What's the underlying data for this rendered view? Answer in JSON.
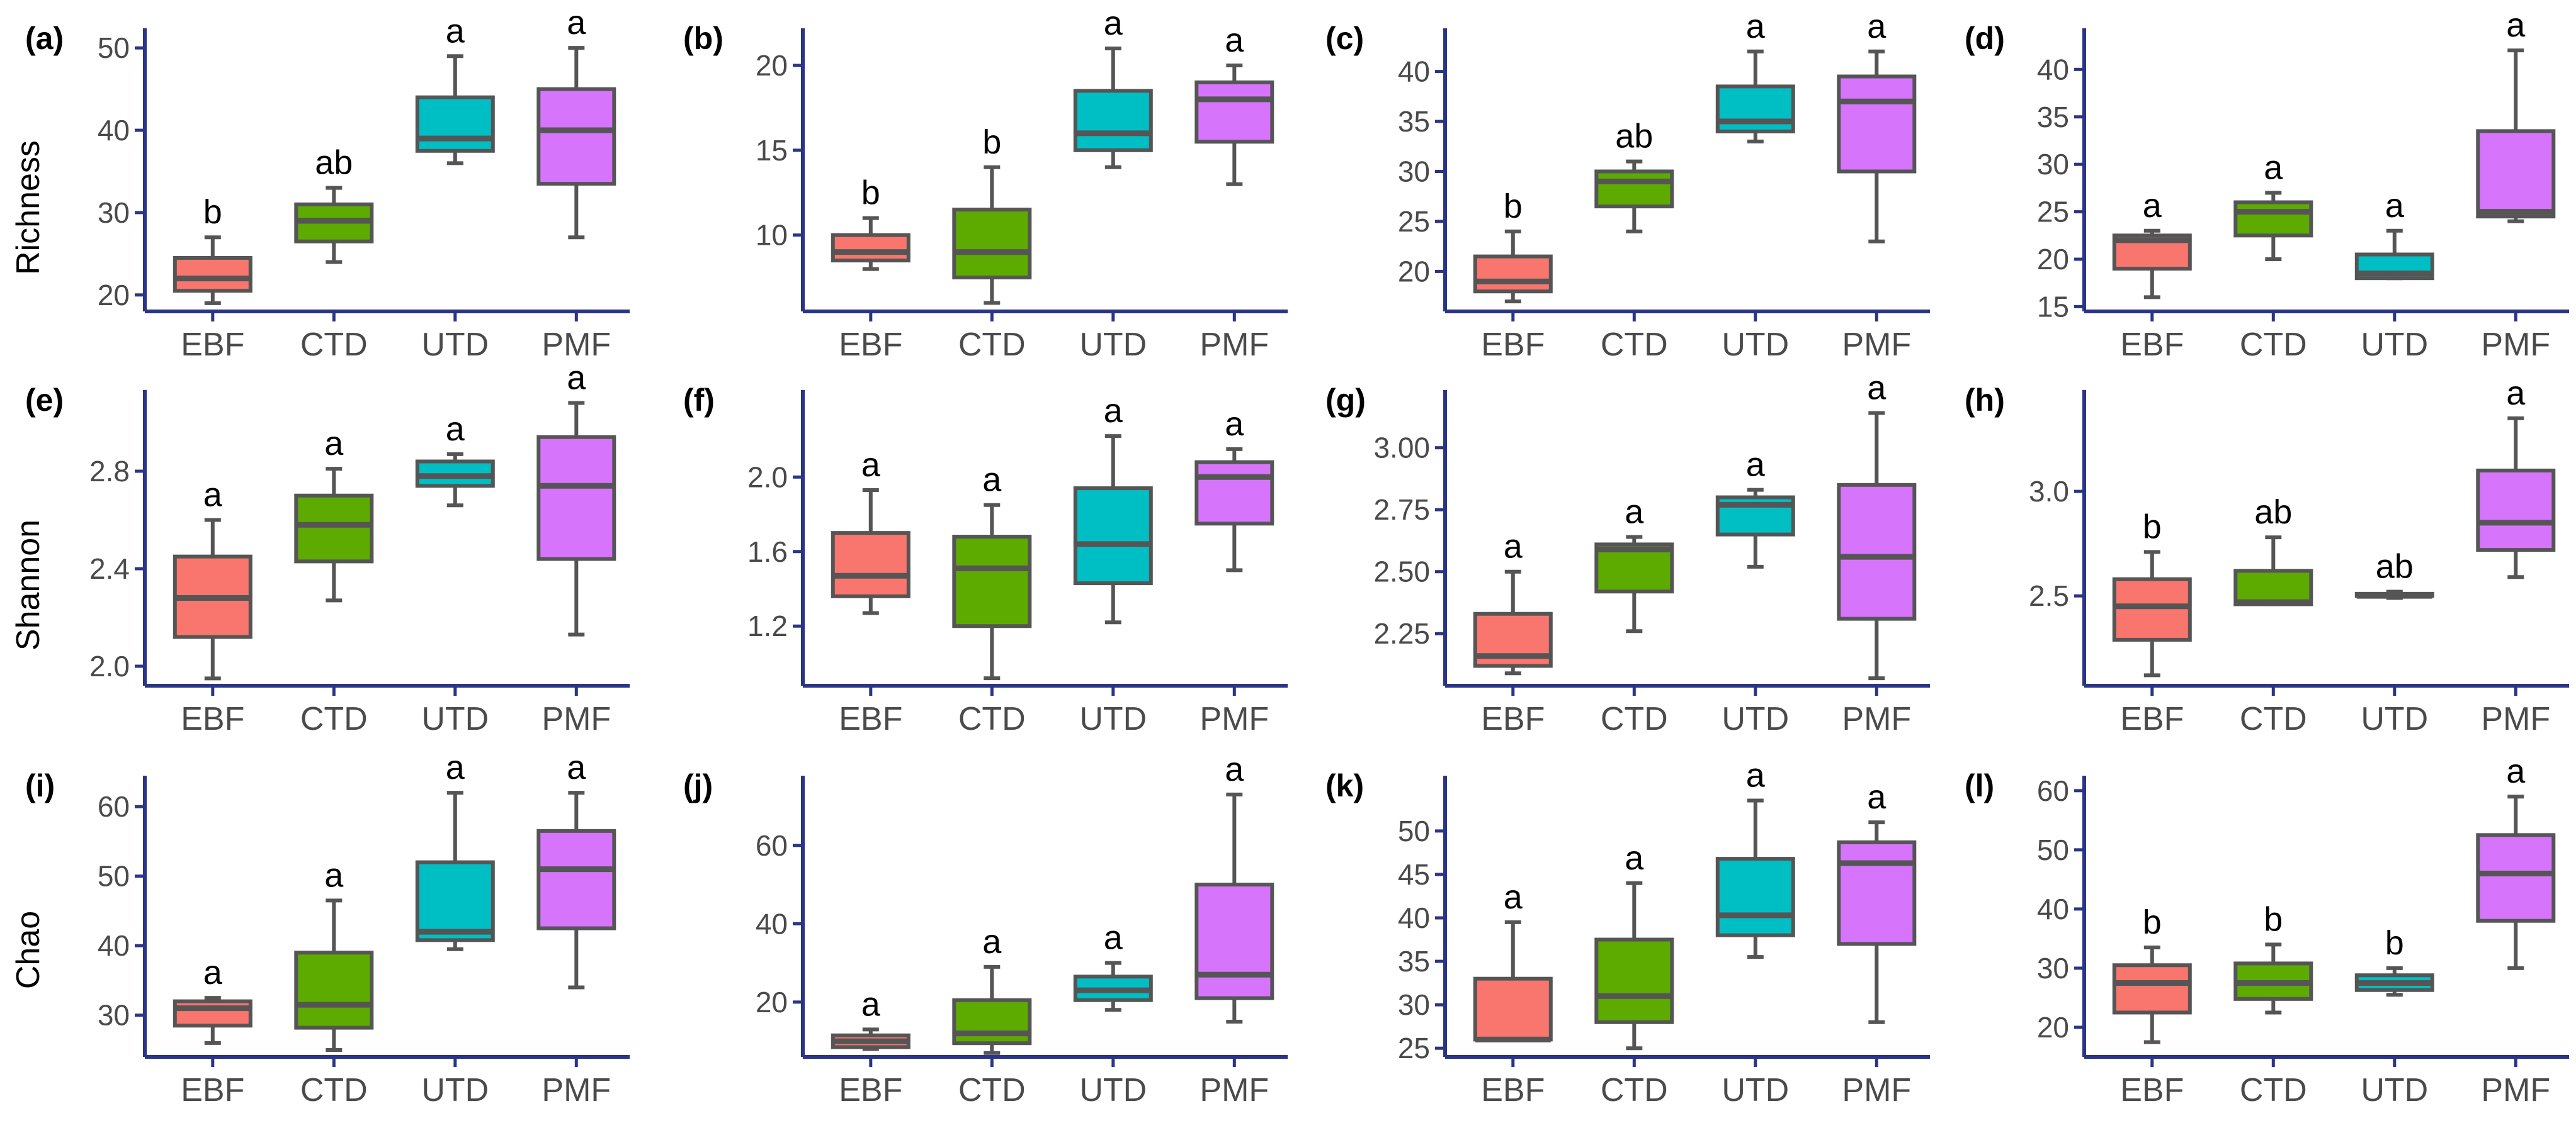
{
  "row_labels": [
    "Richness",
    "Shannon",
    "Chao"
  ],
  "colors": {
    "EBF": "#f8766d",
    "CTD": "#5daa00",
    "UTD": "#00bfc4",
    "PMF": "#d674fc",
    "axis": "#2a3587"
  },
  "chart_data": [
    {
      "type": "boxplot",
      "panel": "(a)",
      "metric": "Richness",
      "categories": [
        "EBF",
        "CTD",
        "UTD",
        "PMF"
      ],
      "ylim": [
        18,
        52
      ],
      "yticks": [
        20,
        30,
        40,
        50
      ],
      "boxes": [
        {
          "cat": "EBF",
          "min": 19,
          "q1": 20.5,
          "median": 22,
          "q3": 24.5,
          "max": 27,
          "letter": "b"
        },
        {
          "cat": "CTD",
          "min": 24,
          "q1": 26.5,
          "median": 29,
          "q3": 31,
          "max": 33,
          "letter": "ab"
        },
        {
          "cat": "UTD",
          "min": 36,
          "q1": 37.5,
          "median": 39,
          "q3": 44,
          "max": 49,
          "letter": "a"
        },
        {
          "cat": "PMF",
          "min": 27,
          "q1": 33.5,
          "median": 40,
          "q3": 45,
          "max": 50,
          "letter": "a"
        }
      ]
    },
    {
      "type": "boxplot",
      "panel": "(b)",
      "metric": "Richness",
      "categories": [
        "EBF",
        "CTD",
        "UTD",
        "PMF"
      ],
      "ylim": [
        5.5,
        22
      ],
      "yticks": [
        10,
        15,
        20
      ],
      "boxes": [
        {
          "cat": "EBF",
          "min": 8,
          "q1": 8.5,
          "median": 9,
          "q3": 10,
          "max": 11,
          "letter": "b"
        },
        {
          "cat": "CTD",
          "min": 6,
          "q1": 7.5,
          "median": 9,
          "q3": 11.5,
          "max": 14,
          "letter": "b"
        },
        {
          "cat": "UTD",
          "min": 14,
          "q1": 15,
          "median": 16,
          "q3": 18.5,
          "max": 21,
          "letter": "a"
        },
        {
          "cat": "PMF",
          "min": 13,
          "q1": 15.5,
          "median": 18,
          "q3": 19,
          "max": 20,
          "letter": "a"
        }
      ]
    },
    {
      "type": "boxplot",
      "panel": "(c)",
      "metric": "Richness",
      "categories": [
        "EBF",
        "CTD",
        "UTD",
        "PMF"
      ],
      "ylim": [
        16,
        44
      ],
      "yticks": [
        20,
        25,
        30,
        35,
        40
      ],
      "boxes": [
        {
          "cat": "EBF",
          "min": 17,
          "q1": 18,
          "median": 19,
          "q3": 21.5,
          "max": 24,
          "letter": "b"
        },
        {
          "cat": "CTD",
          "min": 24,
          "q1": 26.5,
          "median": 29,
          "q3": 30,
          "max": 31,
          "letter": "ab"
        },
        {
          "cat": "UTD",
          "min": 33,
          "q1": 34,
          "median": 35,
          "q3": 38.5,
          "max": 42,
          "letter": "a"
        },
        {
          "cat": "PMF",
          "min": 23,
          "q1": 30,
          "median": 37,
          "q3": 39.5,
          "max": 42,
          "letter": "a"
        }
      ]
    },
    {
      "type": "boxplot",
      "panel": "(d)",
      "metric": "Richness",
      "categories": [
        "EBF",
        "CTD",
        "UTD",
        "PMF"
      ],
      "ylim": [
        14.5,
        44
      ],
      "yticks": [
        15,
        20,
        25,
        30,
        35,
        40
      ],
      "boxes": [
        {
          "cat": "EBF",
          "min": 16,
          "q1": 19,
          "median": 22,
          "q3": 22.5,
          "max": 23,
          "letter": "a"
        },
        {
          "cat": "CTD",
          "min": 20,
          "q1": 22.5,
          "median": 25,
          "q3": 26,
          "max": 27,
          "letter": "a"
        },
        {
          "cat": "UTD",
          "min": 18,
          "q1": 18,
          "median": 18.5,
          "q3": 20.5,
          "max": 23,
          "letter": "a"
        },
        {
          "cat": "PMF",
          "min": 24,
          "q1": 24.5,
          "median": 25,
          "q3": 33.5,
          "max": 42,
          "letter": "a"
        }
      ]
    },
    {
      "type": "boxplot",
      "panel": "(e)",
      "metric": "Shannon",
      "categories": [
        "EBF",
        "CTD",
        "UTD",
        "PMF"
      ],
      "ylim": [
        1.92,
        3.12
      ],
      "yticks": [
        2.0,
        2.4,
        2.8
      ],
      "boxes": [
        {
          "cat": "EBF",
          "min": 1.95,
          "q1": 2.12,
          "median": 2.28,
          "q3": 2.45,
          "max": 2.6,
          "letter": "a"
        },
        {
          "cat": "CTD",
          "min": 2.27,
          "q1": 2.43,
          "median": 2.58,
          "q3": 2.7,
          "max": 2.81,
          "letter": "a"
        },
        {
          "cat": "UTD",
          "min": 2.66,
          "q1": 2.74,
          "median": 2.78,
          "q3": 2.84,
          "max": 2.87,
          "letter": "a"
        },
        {
          "cat": "PMF",
          "min": 2.13,
          "q1": 2.44,
          "median": 2.74,
          "q3": 2.94,
          "max": 3.08,
          "letter": "a"
        }
      ]
    },
    {
      "type": "boxplot",
      "panel": "(f)",
      "metric": "Shannon",
      "categories": [
        "EBF",
        "CTD",
        "UTD",
        "PMF"
      ],
      "ylim": [
        0.88,
        2.45
      ],
      "yticks": [
        1.2,
        1.6,
        2.0
      ],
      "boxes": [
        {
          "cat": "EBF",
          "min": 1.27,
          "q1": 1.36,
          "median": 1.47,
          "q3": 1.7,
          "max": 1.93,
          "letter": "a"
        },
        {
          "cat": "CTD",
          "min": 0.92,
          "q1": 1.2,
          "median": 1.51,
          "q3": 1.68,
          "max": 1.85,
          "letter": "a"
        },
        {
          "cat": "UTD",
          "min": 1.22,
          "q1": 1.43,
          "median": 1.64,
          "q3": 1.94,
          "max": 2.22,
          "letter": "a"
        },
        {
          "cat": "PMF",
          "min": 1.5,
          "q1": 1.75,
          "median": 2.0,
          "q3": 2.08,
          "max": 2.15,
          "letter": "a"
        }
      ]
    },
    {
      "type": "boxplot",
      "panel": "(g)",
      "metric": "Shannon",
      "categories": [
        "EBF",
        "CTD",
        "UTD",
        "PMF"
      ],
      "ylim": [
        2.04,
        3.22
      ],
      "yticks": [
        2.25,
        2.5,
        2.75,
        3.0
      ],
      "boxes": [
        {
          "cat": "EBF",
          "min": 2.09,
          "q1": 2.12,
          "median": 2.16,
          "q3": 2.33,
          "max": 2.5,
          "letter": "a"
        },
        {
          "cat": "CTD",
          "min": 2.26,
          "q1": 2.42,
          "median": 2.59,
          "q3": 2.61,
          "max": 2.64,
          "letter": "a"
        },
        {
          "cat": "UTD",
          "min": 2.52,
          "q1": 2.65,
          "median": 2.77,
          "q3": 2.8,
          "max": 2.83,
          "letter": "a"
        },
        {
          "cat": "PMF",
          "min": 2.07,
          "q1": 2.31,
          "median": 2.56,
          "q3": 2.85,
          "max": 3.14,
          "letter": "a"
        }
      ]
    },
    {
      "type": "boxplot",
      "panel": "(h)",
      "metric": "Shannon",
      "categories": [
        "EBF",
        "CTD",
        "UTD",
        "PMF"
      ],
      "ylim": [
        2.07,
        3.47
      ],
      "yticks": [
        2.5,
        3.0
      ],
      "boxes": [
        {
          "cat": "EBF",
          "min": 2.12,
          "q1": 2.29,
          "median": 2.45,
          "q3": 2.58,
          "max": 2.71,
          "letter": "b"
        },
        {
          "cat": "CTD",
          "min": 2.46,
          "q1": 2.46,
          "median": 2.47,
          "q3": 2.62,
          "max": 2.78,
          "letter": "ab"
        },
        {
          "cat": "UTD",
          "min": 2.49,
          "q1": 2.5,
          "median": 2.5,
          "q3": 2.51,
          "max": 2.52,
          "letter": "ab"
        },
        {
          "cat": "PMF",
          "min": 2.59,
          "q1": 2.72,
          "median": 2.85,
          "q3": 3.1,
          "max": 3.35,
          "letter": "a"
        }
      ]
    },
    {
      "type": "boxplot",
      "panel": "(i)",
      "metric": "Chao",
      "categories": [
        "EBF",
        "CTD",
        "UTD",
        "PMF"
      ],
      "ylim": [
        24,
        64
      ],
      "yticks": [
        30,
        40,
        50,
        60
      ],
      "boxes": [
        {
          "cat": "EBF",
          "min": 26,
          "q1": 28.5,
          "median": 31,
          "q3": 32,
          "max": 32.5,
          "letter": "a"
        },
        {
          "cat": "CTD",
          "min": 25,
          "q1": 28.2,
          "median": 31.5,
          "q3": 39,
          "max": 46.5,
          "letter": "a"
        },
        {
          "cat": "UTD",
          "min": 39.5,
          "q1": 40.8,
          "median": 42,
          "q3": 52,
          "max": 62,
          "letter": "a"
        },
        {
          "cat": "PMF",
          "min": 34,
          "q1": 42.5,
          "median": 51,
          "q3": 56.5,
          "max": 62,
          "letter": "a"
        }
      ]
    },
    {
      "type": "boxplot",
      "panel": "(j)",
      "metric": "Chao",
      "categories": [
        "EBF",
        "CTD",
        "UTD",
        "PMF"
      ],
      "ylim": [
        6,
        77
      ],
      "yticks": [
        20,
        40,
        60
      ],
      "boxes": [
        {
          "cat": "EBF",
          "min": 8,
          "q1": 8.5,
          "median": 10,
          "q3": 11.5,
          "max": 13,
          "letter": "a"
        },
        {
          "cat": "CTD",
          "min": 7,
          "q1": 9.5,
          "median": 12,
          "q3": 20.5,
          "max": 29,
          "letter": "a"
        },
        {
          "cat": "UTD",
          "min": 18,
          "q1": 20.5,
          "median": 23,
          "q3": 26.5,
          "max": 30,
          "letter": "a"
        },
        {
          "cat": "PMF",
          "min": 15,
          "q1": 21,
          "median": 27,
          "q3": 50,
          "max": 73,
          "letter": "a"
        }
      ]
    },
    {
      "type": "boxplot",
      "panel": "(k)",
      "metric": "Chao",
      "categories": [
        "EBF",
        "CTD",
        "UTD",
        "PMF"
      ],
      "ylim": [
        24,
        56
      ],
      "yticks": [
        25,
        30,
        35,
        40,
        45,
        50
      ],
      "boxes": [
        {
          "cat": "EBF",
          "min": 26,
          "q1": 26,
          "median": 26,
          "q3": 33,
          "max": 39.5,
          "letter": "a"
        },
        {
          "cat": "CTD",
          "min": 25,
          "q1": 28,
          "median": 31,
          "q3": 37.5,
          "max": 44,
          "letter": "a"
        },
        {
          "cat": "UTD",
          "min": 35.5,
          "q1": 38,
          "median": 40.3,
          "q3": 46.8,
          "max": 53.5,
          "letter": "a"
        },
        {
          "cat": "PMF",
          "min": 28,
          "q1": 37,
          "median": 46.3,
          "q3": 48.7,
          "max": 51,
          "letter": "a"
        }
      ]
    },
    {
      "type": "boxplot",
      "panel": "(l)",
      "metric": "Chao",
      "categories": [
        "EBF",
        "CTD",
        "UTD",
        "PMF"
      ],
      "ylim": [
        15,
        62
      ],
      "yticks": [
        20,
        30,
        40,
        50,
        60
      ],
      "boxes": [
        {
          "cat": "EBF",
          "min": 17.5,
          "q1": 22.5,
          "median": 27.5,
          "q3": 30.5,
          "max": 33.5,
          "letter": "b"
        },
        {
          "cat": "CTD",
          "min": 22.5,
          "q1": 24.8,
          "median": 27.5,
          "q3": 30.8,
          "max": 34,
          "letter": "b"
        },
        {
          "cat": "UTD",
          "min": 25.5,
          "q1": 26.3,
          "median": 27.5,
          "q3": 28.8,
          "max": 30,
          "letter": "b"
        },
        {
          "cat": "PMF",
          "min": 30,
          "q1": 38,
          "median": 46,
          "q3": 52.5,
          "max": 59,
          "letter": "a"
        }
      ]
    }
  ]
}
